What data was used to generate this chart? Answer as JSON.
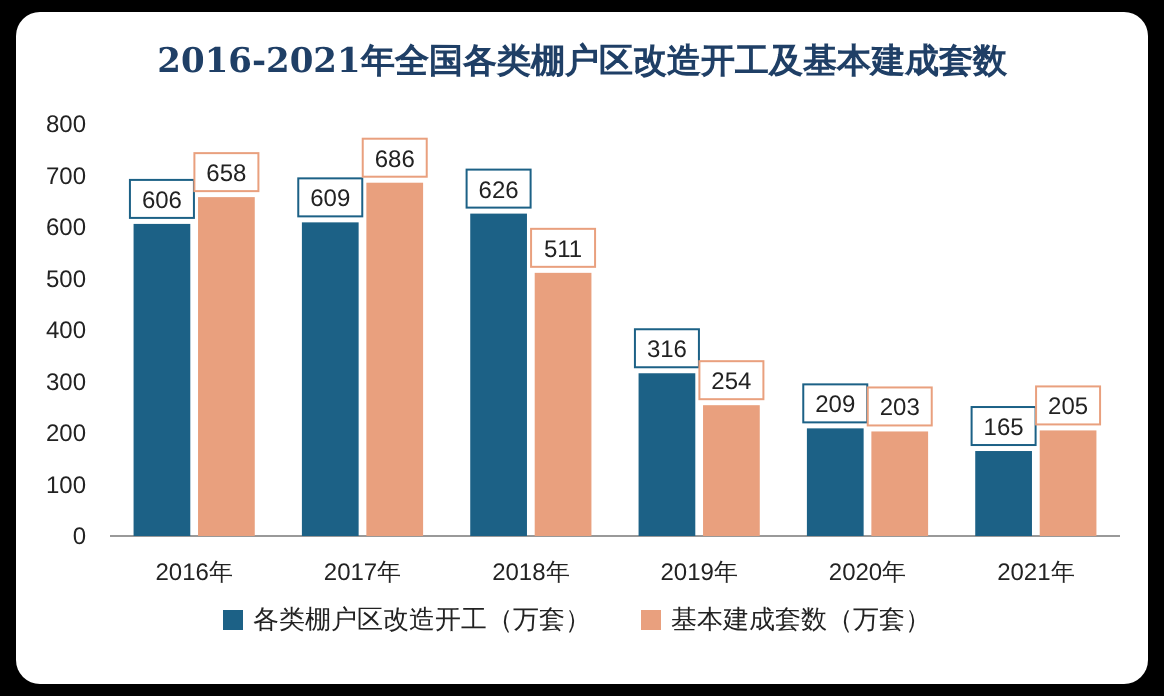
{
  "chart_data": {
    "type": "bar",
    "title": "2016-2021年全国各类棚户区改造开工及基本建成套数",
    "categories": [
      "2016年",
      "2017年",
      "2018年",
      "2019年",
      "2020年",
      "2021年"
    ],
    "series": [
      {
        "name": "各类棚户区改造开工（万套）",
        "color": "#1c6186",
        "values": [
          606,
          609,
          626,
          316,
          209,
          165
        ]
      },
      {
        "name": "基本建成套数（万套）",
        "color": "#e9a07e",
        "values": [
          658,
          686,
          511,
          254,
          203,
          205
        ]
      }
    ],
    "ylim": [
      0,
      800
    ],
    "yticks": [
      0,
      100,
      200,
      300,
      400,
      500,
      600,
      700,
      800
    ],
    "grid": false,
    "legend": "bottom",
    "data_labels": true
  }
}
